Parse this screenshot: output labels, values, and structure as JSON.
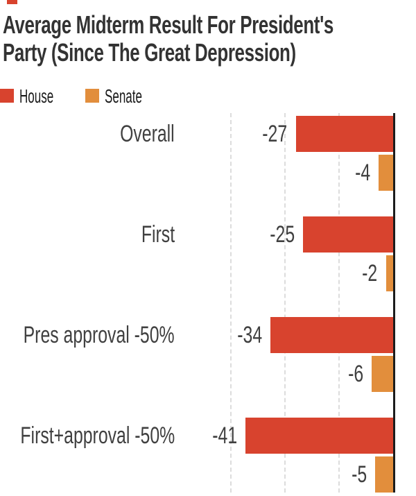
{
  "brand_mark_color": "#d8432e",
  "title": "Average Midterm Result For President's\nParty (Since The Great Depression)",
  "legend": [
    {
      "label": "House",
      "color": "#d8432e"
    },
    {
      "label": "Senate",
      "color": "#e28e3c"
    }
  ],
  "chart_data": {
    "type": "bar",
    "orientation": "horizontal",
    "title": "Average Midterm Result For President's Party (Since The Great Depression)",
    "categories": [
      "Overall",
      "First",
      "Pres approval -50%",
      "First+approval -50%"
    ],
    "series": [
      {
        "name": "House",
        "color": "#d8432e",
        "values": [
          -27,
          -25,
          -34,
          -41
        ]
      },
      {
        "name": "Senate",
        "color": "#e28e3c",
        "values": [
          -4,
          -2,
          -6,
          -5
        ]
      }
    ],
    "value_labels": {
      "house": [
        "-27",
        "-25",
        "-34",
        "-41"
      ],
      "senate": [
        "-4",
        "-2",
        "-6",
        "-5"
      ]
    },
    "xlim": [
      -45,
      0
    ],
    "gridlines": [
      -15,
      -30,
      -45
    ],
    "grid_style": "dashed",
    "zero_axis_side": "right",
    "legend_position": "top-left",
    "axis_color": "#1c1c1c",
    "gridline_color": "#dcdcdc",
    "label_color": "#404040",
    "title_color": "#333333"
  }
}
